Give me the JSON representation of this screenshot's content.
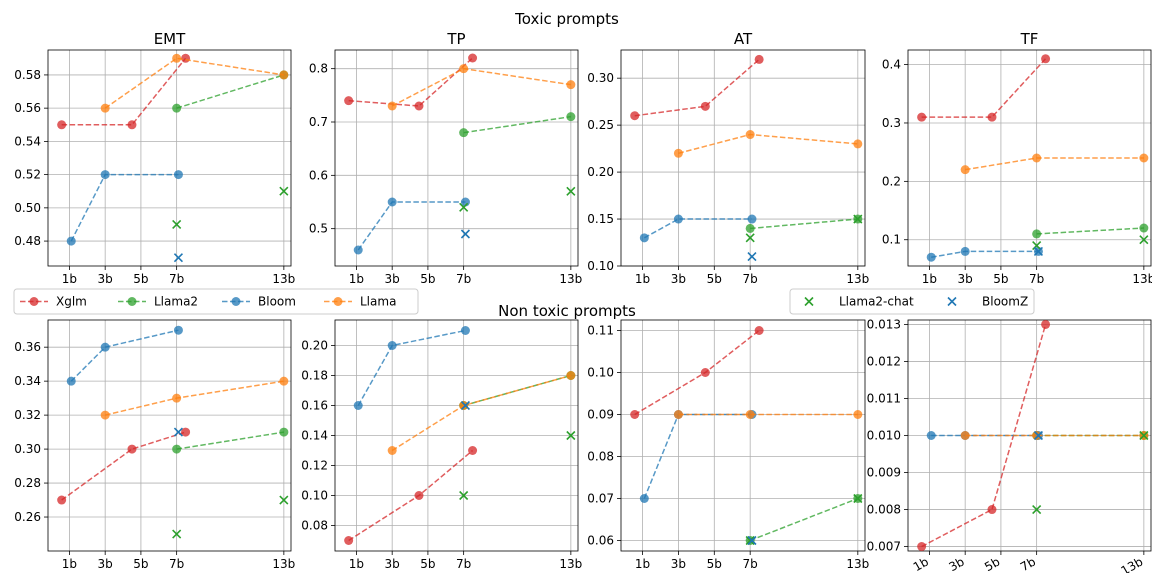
{
  "figure": {
    "top_title": "Toxic prompts",
    "middle_title": "Non toxic prompts"
  },
  "colors": {
    "Xglm": "#d62728",
    "Llama2": "#2ca02c",
    "Bloom": "#1f77b4",
    "Llama": "#ff7f0e",
    "Llama2-chat": "#2ca02c",
    "BloomZ": "#1f77b4"
  },
  "legend_left": [
    "Xglm",
    "Llama2",
    "Bloom",
    "Llama"
  ],
  "legend_right": [
    "Llama2-chat",
    "BloomZ"
  ],
  "chart_data": [
    {
      "type": "line",
      "group": "Toxic prompts",
      "title": "EMT",
      "x_ticks": [
        "1b",
        "3b",
        "5b",
        "7b",
        "13b"
      ],
      "ylim": [
        0.465,
        0.595
      ],
      "y_ticks": [
        "0.48",
        "0.50",
        "0.52",
        "0.54",
        "0.56",
        "0.58"
      ],
      "grid": true,
      "series": [
        {
          "name": "Xglm",
          "x": [
            "564M",
            "4.5b",
            "7.5b"
          ],
          "y": [
            0.55,
            0.55,
            0.59
          ]
        },
        {
          "name": "Llama2",
          "x": [
            "7b",
            "13b"
          ],
          "y": [
            0.56,
            0.58
          ]
        },
        {
          "name": "Bloom",
          "x": [
            "1.1b",
            "3b",
            "7.1b"
          ],
          "y": [
            0.48,
            0.52,
            0.52
          ]
        },
        {
          "name": "Llama",
          "x": [
            "3b",
            "7b",
            "13b"
          ],
          "y": [
            0.56,
            0.59,
            0.58
          ]
        }
      ],
      "markers": [
        {
          "name": "Llama2-chat",
          "x": [
            "7b",
            "13b"
          ],
          "y": [
            0.49,
            0.51
          ]
        },
        {
          "name": "BloomZ",
          "x": [
            "7.1b"
          ],
          "y": [
            0.47
          ]
        }
      ]
    },
    {
      "type": "line",
      "group": "Toxic prompts",
      "title": "TP",
      "x_ticks": [
        "1b",
        "3b",
        "5b",
        "7b",
        "13b"
      ],
      "ylim": [
        0.43,
        0.835
      ],
      "y_ticks": [
        "0.5",
        "0.6",
        "0.7",
        "0.8"
      ],
      "grid": true,
      "series": [
        {
          "name": "Xglm",
          "x": [
            "564M",
            "4.5b",
            "7.5b"
          ],
          "y": [
            0.74,
            0.73,
            0.82
          ]
        },
        {
          "name": "Llama2",
          "x": [
            "7b",
            "13b"
          ],
          "y": [
            0.68,
            0.71
          ]
        },
        {
          "name": "Bloom",
          "x": [
            "1.1b",
            "3b",
            "7.1b"
          ],
          "y": [
            0.46,
            0.55,
            0.55
          ]
        },
        {
          "name": "Llama",
          "x": [
            "3b",
            "7b",
            "13b"
          ],
          "y": [
            0.73,
            0.8,
            0.77
          ]
        }
      ],
      "markers": [
        {
          "name": "Llama2-chat",
          "x": [
            "7b",
            "13b"
          ],
          "y": [
            0.54,
            0.57
          ]
        },
        {
          "name": "BloomZ",
          "x": [
            "7.1b"
          ],
          "y": [
            0.49
          ]
        }
      ]
    },
    {
      "type": "line",
      "group": "Toxic prompts",
      "title": "AT",
      "x_ticks": [
        "1b",
        "3b",
        "5b",
        "7b",
        "13b"
      ],
      "ylim": [
        0.1,
        0.33
      ],
      "y_ticks": [
        "0.10",
        "0.15",
        "0.20",
        "0.25",
        "0.30"
      ],
      "grid": true,
      "series": [
        {
          "name": "Xglm",
          "x": [
            "564M",
            "4.5b",
            "7.5b"
          ],
          "y": [
            0.26,
            0.27,
            0.32
          ]
        },
        {
          "name": "Llama2",
          "x": [
            "7b",
            "13b"
          ],
          "y": [
            0.14,
            0.15
          ]
        },
        {
          "name": "Bloom",
          "x": [
            "1.1b",
            "3b",
            "7.1b"
          ],
          "y": [
            0.13,
            0.15,
            0.15
          ]
        },
        {
          "name": "Llama",
          "x": [
            "3b",
            "7b",
            "13b"
          ],
          "y": [
            0.22,
            0.24,
            0.23
          ]
        }
      ],
      "markers": [
        {
          "name": "Llama2-chat",
          "x": [
            "7b",
            "13b"
          ],
          "y": [
            0.13,
            0.15
          ]
        },
        {
          "name": "BloomZ",
          "x": [
            "7.1b"
          ],
          "y": [
            0.11
          ]
        }
      ]
    },
    {
      "type": "line",
      "group": "Toxic prompts",
      "title": "TF",
      "x_ticks": [
        "1b",
        "3b",
        "5b",
        "7b",
        "13b"
      ],
      "ylim": [
        0.055,
        0.425
      ],
      "y_ticks": [
        "0.1",
        "0.2",
        "0.3",
        "0.4"
      ],
      "grid": true,
      "series": [
        {
          "name": "Xglm",
          "x": [
            "564M",
            "4.5b",
            "7.5b"
          ],
          "y": [
            0.31,
            0.31,
            0.41
          ]
        },
        {
          "name": "Llama2",
          "x": [
            "7b",
            "13b"
          ],
          "y": [
            0.11,
            0.12
          ]
        },
        {
          "name": "Bloom",
          "x": [
            "1.1b",
            "3b",
            "7.1b"
          ],
          "y": [
            0.07,
            0.08,
            0.08
          ]
        },
        {
          "name": "Llama",
          "x": [
            "3b",
            "7b",
            "13b"
          ],
          "y": [
            0.22,
            0.24,
            0.24
          ]
        }
      ],
      "markers": [
        {
          "name": "Llama2-chat",
          "x": [
            "7b",
            "13b"
          ],
          "y": [
            0.09,
            0.1
          ]
        },
        {
          "name": "BloomZ",
          "x": [
            "7.1b"
          ],
          "y": [
            0.08
          ]
        }
      ]
    },
    {
      "type": "line",
      "group": "Non toxic prompts",
      "title": "",
      "x_ticks": [
        "1b",
        "3b",
        "5b",
        "7b",
        "13b"
      ],
      "ylim": [
        0.24,
        0.376
      ],
      "y_ticks": [
        "0.26",
        "0.28",
        "0.30",
        "0.32",
        "0.34",
        "0.36"
      ],
      "grid": true,
      "series": [
        {
          "name": "Xglm",
          "x": [
            "564M",
            "4.5b",
            "7.5b"
          ],
          "y": [
            0.27,
            0.3,
            0.31
          ]
        },
        {
          "name": "Llama2",
          "x": [
            "7b",
            "13b"
          ],
          "y": [
            0.3,
            0.31
          ]
        },
        {
          "name": "Bloom",
          "x": [
            "1.1b",
            "3b",
            "7.1b"
          ],
          "y": [
            0.34,
            0.36,
            0.37
          ]
        },
        {
          "name": "Llama",
          "x": [
            "3b",
            "7b",
            "13b"
          ],
          "y": [
            0.32,
            0.33,
            0.34
          ]
        }
      ],
      "markers": [
        {
          "name": "Llama2-chat",
          "x": [
            "7b",
            "13b"
          ],
          "y": [
            0.25,
            0.27
          ]
        },
        {
          "name": "BloomZ",
          "x": [
            "7.1b"
          ],
          "y": [
            0.31
          ]
        }
      ]
    },
    {
      "type": "line",
      "group": "Non toxic prompts",
      "title": "",
      "x_ticks": [
        "1b",
        "3b",
        "5b",
        "7b",
        "13b"
      ],
      "ylim": [
        0.063,
        0.217
      ],
      "y_ticks": [
        "0.08",
        "0.10",
        "0.12",
        "0.14",
        "0.16",
        "0.18",
        "0.20"
      ],
      "grid": true,
      "series": [
        {
          "name": "Xglm",
          "x": [
            "564M",
            "4.5b",
            "7.5b"
          ],
          "y": [
            0.07,
            0.1,
            0.13
          ]
        },
        {
          "name": "Llama2",
          "x": [
            "7b",
            "13b"
          ],
          "y": [
            0.16,
            0.18
          ]
        },
        {
          "name": "Bloom",
          "x": [
            "1.1b",
            "3b",
            "7.1b"
          ],
          "y": [
            0.16,
            0.2,
            0.21
          ]
        },
        {
          "name": "Llama",
          "x": [
            "3b",
            "7b",
            "13b"
          ],
          "y": [
            0.13,
            0.16,
            0.18
          ]
        }
      ],
      "markers": [
        {
          "name": "Llama2-chat",
          "x": [
            "7b",
            "13b"
          ],
          "y": [
            0.1,
            0.14
          ]
        },
        {
          "name": "BloomZ",
          "x": [
            "7.1b"
          ],
          "y": [
            0.16
          ]
        }
      ]
    },
    {
      "type": "line",
      "group": "Non toxic prompts",
      "title": "",
      "x_ticks": [
        "1b",
        "3b",
        "5b",
        "7b",
        "13b"
      ],
      "ylim": [
        0.0575,
        0.1125
      ],
      "y_ticks": [
        "0.06",
        "0.07",
        "0.08",
        "0.09",
        "0.10",
        "0.11"
      ],
      "grid": true,
      "series": [
        {
          "name": "Xglm",
          "x": [
            "564M",
            "4.5b",
            "7.5b"
          ],
          "y": [
            0.09,
            0.1,
            0.11
          ]
        },
        {
          "name": "Llama2",
          "x": [
            "7b",
            "13b"
          ],
          "y": [
            0.06,
            0.07
          ]
        },
        {
          "name": "Bloom",
          "x": [
            "1.1b",
            "3b",
            "7.1b"
          ],
          "y": [
            0.07,
            0.09,
            0.09
          ]
        },
        {
          "name": "Llama",
          "x": [
            "3b",
            "7b",
            "13b"
          ],
          "y": [
            0.09,
            0.09,
            0.09
          ]
        }
      ],
      "markers": [
        {
          "name": "Llama2-chat",
          "x": [
            "7b",
            "13b"
          ],
          "y": [
            0.06,
            0.07
          ]
        },
        {
          "name": "BloomZ",
          "x": [
            "7.1b"
          ],
          "y": [
            0.06
          ]
        }
      ]
    },
    {
      "type": "line",
      "group": "Non toxic prompts",
      "title": "",
      "x_ticks": [
        "1b",
        "3b",
        "5b",
        "7b",
        "13b"
      ],
      "x_tick_rotation": 30,
      "ylim": [
        0.00688,
        0.01312
      ],
      "y_ticks": [
        "0.007",
        "0.008",
        "0.009",
        "0.010",
        "0.011",
        "0.012",
        "0.013"
      ],
      "grid": true,
      "series": [
        {
          "name": "Xglm",
          "x": [
            "564M",
            "4.5b",
            "7.5b"
          ],
          "y": [
            0.007,
            0.008,
            0.013
          ]
        },
        {
          "name": "Llama2",
          "x": [
            "7b",
            "13b"
          ],
          "y": [
            0.01,
            0.01
          ]
        },
        {
          "name": "Bloom",
          "x": [
            "1.1b",
            "3b",
            "7.1b"
          ],
          "y": [
            0.01,
            0.01,
            0.01
          ]
        },
        {
          "name": "Llama",
          "x": [
            "3b",
            "7b",
            "13b"
          ],
          "y": [
            0.01,
            0.01,
            0.01
          ]
        }
      ],
      "markers": [
        {
          "name": "Llama2-chat",
          "x": [
            "7b",
            "13b"
          ],
          "y": [
            0.008,
            0.01
          ]
        },
        {
          "name": "BloomZ",
          "x": [
            "7.1b"
          ],
          "y": [
            0.01
          ]
        }
      ]
    }
  ]
}
